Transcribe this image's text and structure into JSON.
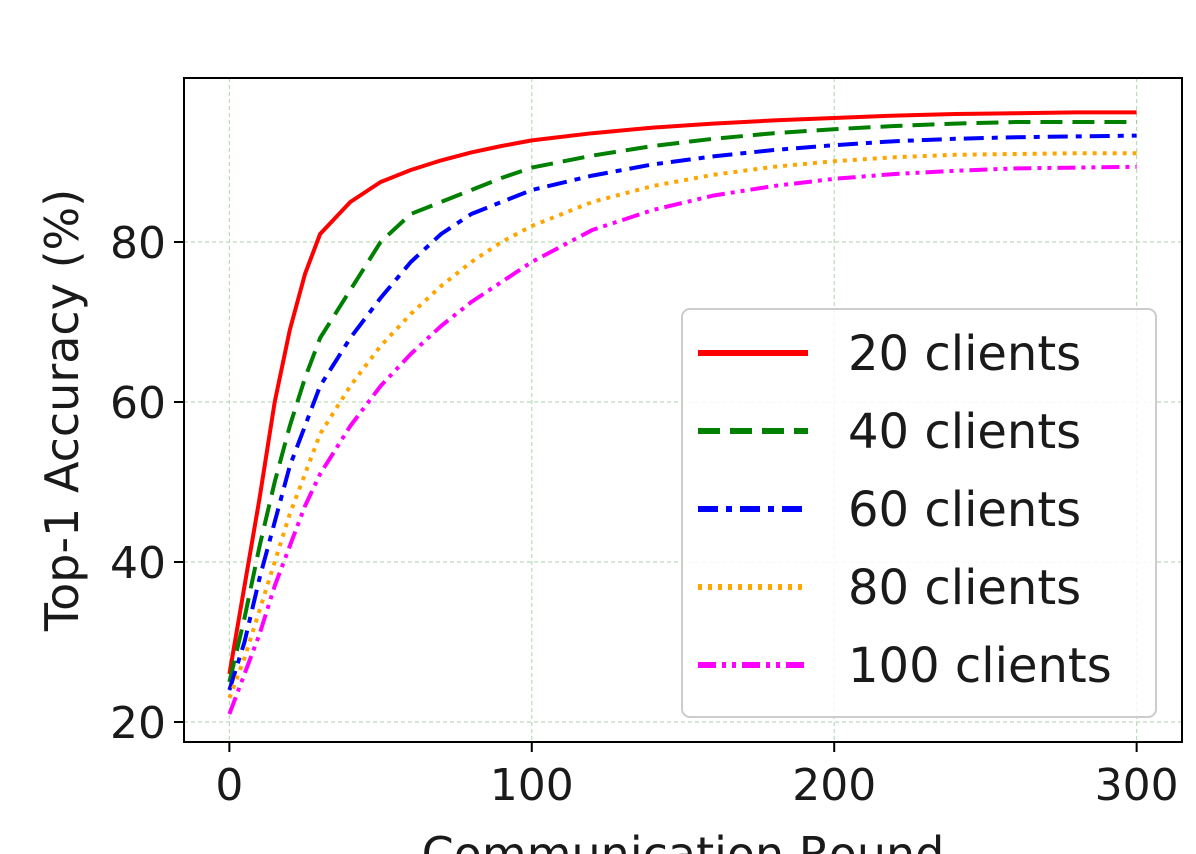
{
  "chart_data": {
    "type": "line",
    "xlabel": "Communication Round",
    "ylabel": "Top-1 Accuracy (%)",
    "xlim": [
      -15,
      315
    ],
    "ylim": [
      17.5,
      100.5
    ],
    "xticks": [
      0,
      100,
      200,
      300
    ],
    "yticks": [
      20,
      40,
      60,
      80
    ],
    "grid": true,
    "legend_position": "lower-right",
    "series": [
      {
        "name": "20 clients",
        "color": "#ff0000",
        "dash": "solid",
        "x": [
          0,
          5,
          10,
          15,
          20,
          25,
          30,
          40,
          50,
          60,
          70,
          80,
          90,
          100,
          120,
          140,
          160,
          180,
          200,
          220,
          240,
          260,
          280,
          300
        ],
        "y": [
          26,
          37,
          48,
          60,
          69,
          76,
          81,
          85,
          87.5,
          89,
          90.2,
          91.2,
          92,
          92.7,
          93.6,
          94.3,
          94.8,
          95.2,
          95.5,
          95.8,
          96,
          96.1,
          96.2,
          96.2
        ]
      },
      {
        "name": "40 clients",
        "color": "#008000",
        "dash": "dashed",
        "x": [
          0,
          5,
          10,
          15,
          20,
          25,
          30,
          40,
          50,
          60,
          70,
          80,
          90,
          100,
          120,
          140,
          160,
          180,
          200,
          220,
          240,
          260,
          280,
          300
        ],
        "y": [
          25,
          33,
          42,
          50,
          57,
          63,
          68,
          74,
          80,
          83.5,
          85,
          86.5,
          88,
          89.3,
          90.8,
          92,
          92.9,
          93.6,
          94.1,
          94.5,
          94.8,
          95,
          95,
          95
        ]
      },
      {
        "name": "60 clients",
        "color": "#0000ff",
        "dash": "dashdot",
        "x": [
          0,
          5,
          10,
          15,
          20,
          25,
          30,
          40,
          50,
          60,
          70,
          80,
          90,
          100,
          120,
          140,
          160,
          180,
          200,
          220,
          240,
          260,
          280,
          300
        ],
        "y": [
          24,
          30,
          38,
          45,
          52,
          57,
          62,
          68,
          73,
          77.5,
          81,
          83.5,
          85,
          86.5,
          88.3,
          89.7,
          90.7,
          91.5,
          92.1,
          92.6,
          92.9,
          93.1,
          93.2,
          93.3
        ]
      },
      {
        "name": "80 clients",
        "color": "#ffa500",
        "dash": "dotted",
        "x": [
          0,
          5,
          10,
          15,
          20,
          25,
          30,
          40,
          50,
          60,
          70,
          80,
          90,
          100,
          120,
          140,
          160,
          180,
          200,
          220,
          240,
          260,
          280,
          300
        ],
        "y": [
          23,
          28,
          34,
          40,
          46,
          51,
          56,
          62,
          67,
          71,
          74.5,
          77.5,
          80,
          82,
          85,
          87,
          88.4,
          89.4,
          90.1,
          90.6,
          90.9,
          91,
          91.1,
          91.1
        ]
      },
      {
        "name": "100 clients",
        "color": "#ff00ff",
        "dash": "dashdotdot",
        "x": [
          0,
          5,
          10,
          15,
          20,
          25,
          30,
          40,
          50,
          60,
          70,
          80,
          90,
          100,
          120,
          140,
          160,
          180,
          200,
          220,
          240,
          260,
          280,
          300
        ],
        "y": [
          21,
          26,
          31,
          37,
          42,
          47,
          51,
          57,
          62,
          66,
          69.5,
          72.5,
          75,
          77.5,
          81.5,
          84,
          85.8,
          87,
          87.9,
          88.5,
          88.9,
          89.2,
          89.3,
          89.4
        ]
      }
    ]
  }
}
